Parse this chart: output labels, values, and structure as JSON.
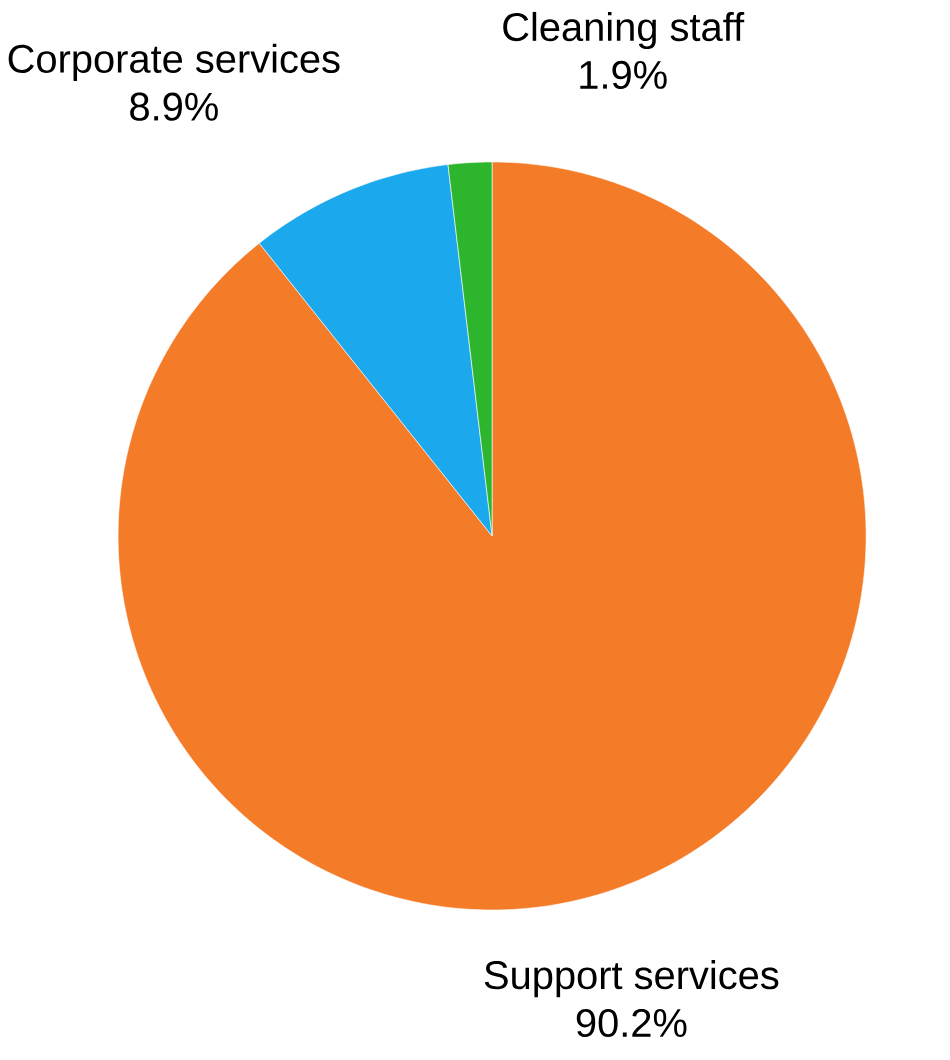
{
  "chart_data": {
    "type": "pie",
    "categories": [
      "Support services",
      "Corporate services",
      "Cleaning staff"
    ],
    "values": [
      90.2,
      8.9,
      1.9
    ],
    "value_labels": [
      "90.2%",
      "8.9%",
      "1.9%"
    ],
    "colors": [
      "#f47b28",
      "#1ba8ec",
      "#2db52d"
    ]
  }
}
